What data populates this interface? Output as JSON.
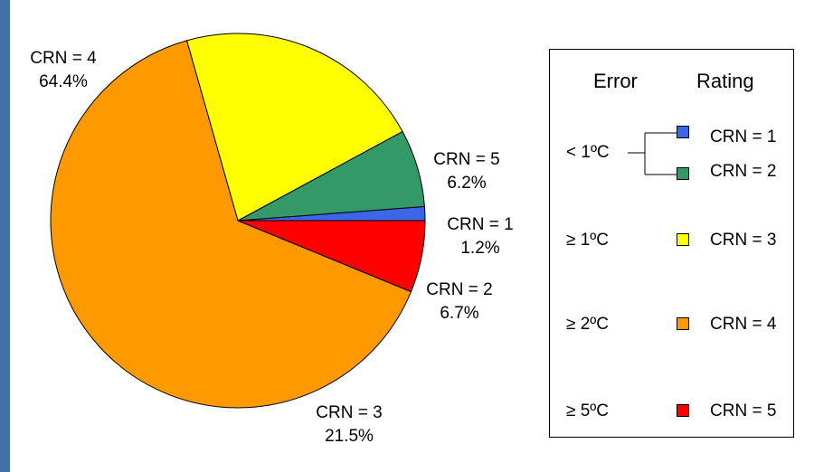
{
  "chart_data": {
    "type": "pie",
    "categories": [
      "CRN = 1",
      "CRN = 2",
      "CRN = 3",
      "CRN = 4",
      "CRN = 5"
    ],
    "values": [
      1.2,
      6.7,
      21.5,
      64.4,
      6.2
    ],
    "value_labels": [
      "1.2%",
      "6.7%",
      "21.5%",
      "64.4%",
      "6.2%"
    ],
    "colors": [
      "#3b66e8",
      "#339966",
      "#ffff00",
      "#ff9900",
      "#ff0000"
    ],
    "title": "",
    "legend": {
      "placement": "right",
      "header_error": "Error",
      "header_rating": "Rating",
      "rows": [
        {
          "error": "< 1ºC",
          "ratings": [
            "CRN = 1",
            "CRN = 2"
          ]
        },
        {
          "error": "≥ 1ºC",
          "ratings": [
            "CRN = 3"
          ]
        },
        {
          "error": "≥ 2ºC",
          "ratings": [
            "CRN = 4"
          ]
        },
        {
          "error": "≥ 5ºC",
          "ratings": [
            "CRN = 5"
          ]
        }
      ]
    }
  }
}
